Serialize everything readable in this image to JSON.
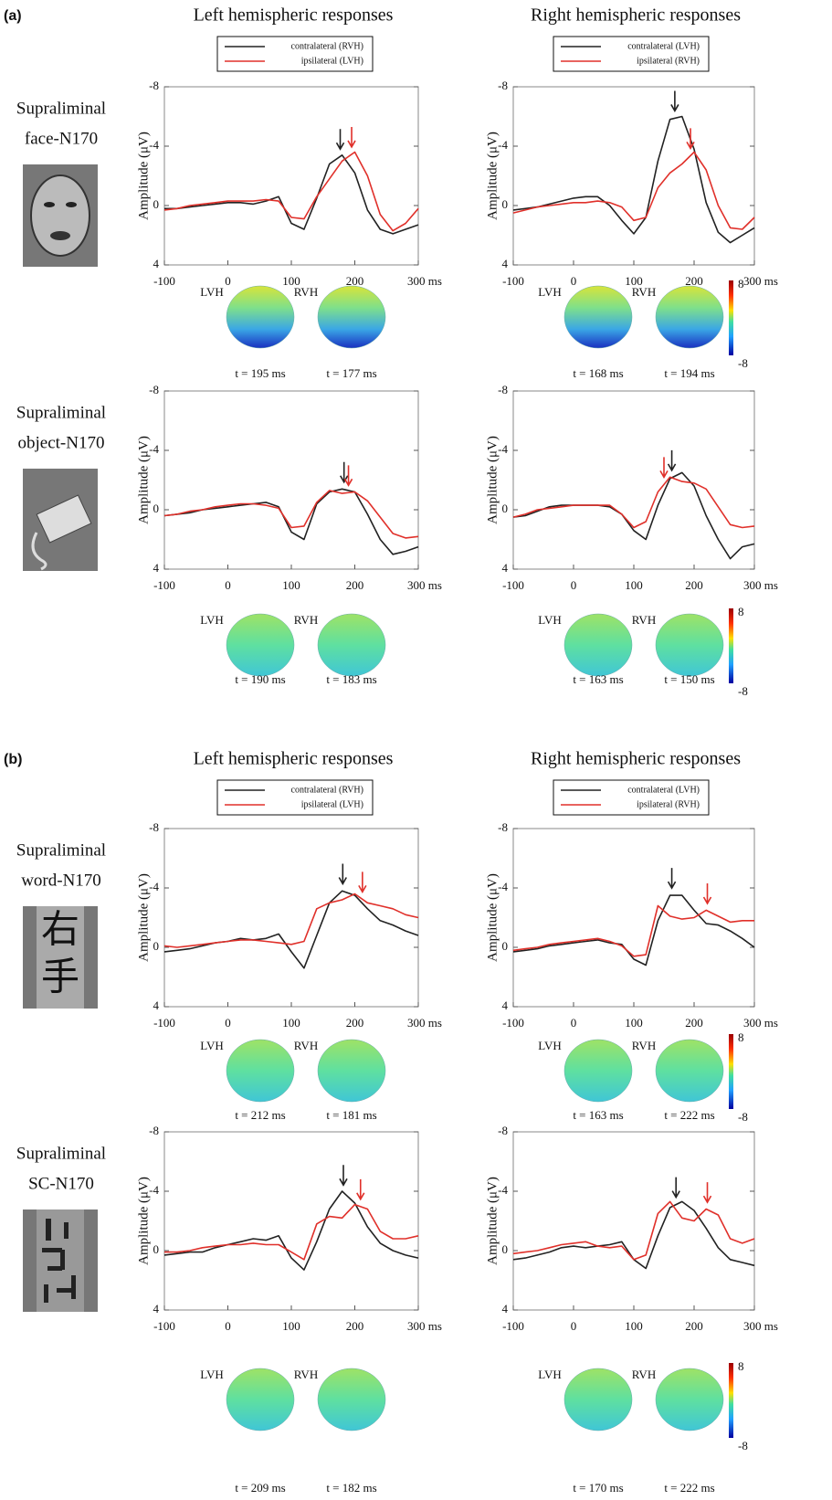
{
  "panels": [
    {
      "label": "(a)",
      "columns": [
        {
          "title": "Left hemispheric responses",
          "legend": [
            "contralateral (RVH)",
            "ipsilateral (LVH)"
          ]
        },
        {
          "title": "Right hemispheric responses",
          "legend": [
            "contralateral (LVH)",
            "ipsilateral (RVH)"
          ]
        }
      ],
      "rows": [
        {
          "label": [
            "Supraliminal",
            "face-N170"
          ]
        },
        {
          "label": [
            "Supraliminal",
            "object-N170"
          ]
        }
      ]
    },
    {
      "label": "(b)",
      "columns": [
        {
          "title": "Left hemispheric responses",
          "legend": [
            "contralateral (RVH)",
            "ipsilateral (LVH)"
          ]
        },
        {
          "title": "Right hemispheric responses",
          "legend": [
            "contralateral (LVH)",
            "ipsilateral (RVH)"
          ]
        }
      ],
      "rows": [
        {
          "label": [
            "Supraliminal",
            "word-N170"
          ],
          "stimulus_text": [
            "右",
            "手"
          ]
        },
        {
          "label": [
            "Supraliminal",
            "SC-N170"
          ]
        }
      ]
    }
  ],
  "chart_data": [
    {
      "type": "line",
      "ylabel": "Amplitude (μV)",
      "x": [
        -100,
        -80,
        -60,
        -40,
        -20,
        0,
        20,
        40,
        60,
        80,
        100,
        120,
        140,
        160,
        180,
        200,
        220,
        240,
        260,
        280,
        300
      ],
      "series": [
        {
          "color": "#222222",
          "peak": 177,
          "values": [
            0.2,
            0.2,
            0.1,
            0,
            -0.1,
            -0.2,
            -0.2,
            -0.1,
            -0.3,
            -0.6,
            1.2,
            1.6,
            -0.5,
            -2.8,
            -3.4,
            -2.2,
            0.3,
            1.6,
            1.9,
            1.6,
            1.3
          ]
        },
        {
          "color": "#e0302a",
          "peak": 195,
          "values": [
            0.3,
            0.2,
            0,
            -0.1,
            -0.2,
            -0.3,
            -0.3,
            -0.3,
            -0.4,
            -0.3,
            0.8,
            0.9,
            -0.6,
            -1.8,
            -3.0,
            -3.6,
            -2.0,
            0.6,
            1.7,
            1.2,
            0.2
          ]
        }
      ],
      "xlim": [
        -100,
        300
      ],
      "ylim": [
        4,
        -8
      ],
      "yticks": [
        -8,
        -4,
        0,
        4
      ],
      "xticks": [
        -100,
        0,
        100,
        200,
        {
          "value": 300,
          "label": "300 ms"
        }
      ],
      "topomaps": [
        {
          "label": "LVH",
          "time": "t = 195 ms"
        },
        {
          "label": "RVH",
          "time": "t = 177 ms"
        }
      ]
    },
    {
      "type": "line",
      "ylabel": "Amplitude (μV)",
      "x": [
        -100,
        -80,
        -60,
        -40,
        -20,
        0,
        20,
        40,
        60,
        80,
        100,
        120,
        140,
        160,
        180,
        200,
        220,
        240,
        260,
        280,
        300
      ],
      "series": [
        {
          "color": "#222222",
          "peak": 168,
          "values": [
            0.3,
            0.2,
            0.1,
            -0.1,
            -0.3,
            -0.5,
            -0.6,
            -0.6,
            0,
            1.0,
            1.9,
            0.8,
            -3.0,
            -5.8,
            -6.0,
            -3.8,
            -0.2,
            1.8,
            2.5,
            2.0,
            1.5
          ]
        },
        {
          "color": "#e0302a",
          "peak": 194,
          "values": [
            0.5,
            0.3,
            0.1,
            0,
            -0.1,
            -0.2,
            -0.2,
            -0.3,
            -0.2,
            0.1,
            1.0,
            0.8,
            -1.2,
            -2.2,
            -2.8,
            -3.6,
            -2.4,
            0,
            1.5,
            1.6,
            0.8
          ]
        }
      ],
      "xlim": [
        -100,
        300
      ],
      "ylim": [
        4,
        -8
      ],
      "yticks": [
        -8,
        -4,
        0,
        4
      ],
      "xticks": [
        -100,
        0,
        100,
        200,
        {
          "value": 300,
          "label": "300 ms"
        }
      ],
      "topomaps": [
        {
          "label": "LVH",
          "time": "t = 168 ms"
        },
        {
          "label": "RVH",
          "time": "t = 194 ms"
        }
      ],
      "colorbar": [
        8,
        -8
      ]
    },
    {
      "type": "line",
      "ylabel": "Amplitude (μV)",
      "x": [
        -100,
        -80,
        -60,
        -40,
        -20,
        0,
        20,
        40,
        60,
        80,
        100,
        120,
        140,
        160,
        180,
        200,
        220,
        240,
        260,
        280,
        300
      ],
      "series": [
        {
          "color": "#222222",
          "peak": 183,
          "values": [
            0.4,
            0.3,
            0.2,
            0,
            -0.1,
            -0.2,
            -0.3,
            -0.4,
            -0.5,
            -0.2,
            1.5,
            2.0,
            -0.4,
            -1.2,
            -1.4,
            -1.2,
            0.3,
            2.0,
            3.0,
            2.8,
            2.5
          ]
        },
        {
          "color": "#e0302a",
          "peak": 190,
          "values": [
            0.4,
            0.3,
            0.1,
            0,
            -0.2,
            -0.3,
            -0.4,
            -0.4,
            -0.3,
            -0.1,
            1.2,
            1.1,
            -0.5,
            -1.3,
            -1.1,
            -1.2,
            -0.6,
            0.5,
            1.6,
            1.9,
            1.8
          ]
        }
      ],
      "xlim": [
        -100,
        300
      ],
      "ylim": [
        4,
        -8
      ],
      "yticks": [
        -8,
        -4,
        0,
        4
      ],
      "xticks": [
        -100,
        0,
        100,
        200,
        {
          "value": 300,
          "label": "300 ms"
        }
      ],
      "topomaps": [
        {
          "label": "LVH",
          "time": "t = 190 ms"
        },
        {
          "label": "RVH",
          "time": "t = 183 ms"
        }
      ]
    },
    {
      "type": "line",
      "ylabel": "Amplitude (μV)",
      "x": [
        -100,
        -80,
        -60,
        -40,
        -20,
        0,
        20,
        40,
        60,
        80,
        100,
        120,
        140,
        160,
        180,
        200,
        220,
        240,
        260,
        280,
        300
      ],
      "series": [
        {
          "color": "#222222",
          "peak": 163,
          "values": [
            0.5,
            0.4,
            0.1,
            -0.2,
            -0.3,
            -0.3,
            -0.3,
            -0.3,
            -0.2,
            0.3,
            1.4,
            2.0,
            -0.3,
            -2.1,
            -2.5,
            -1.6,
            0.4,
            2.0,
            3.3,
            2.5,
            2.3
          ]
        },
        {
          "color": "#e0302a",
          "peak": 150,
          "values": [
            0.5,
            0.3,
            0,
            -0.1,
            -0.2,
            -0.3,
            -0.3,
            -0.3,
            -0.3,
            0.3,
            1.2,
            0.8,
            -1.2,
            -2.2,
            -1.9,
            -1.8,
            -1.4,
            -0.2,
            1.0,
            1.2,
            1.1
          ]
        }
      ],
      "xlim": [
        -100,
        300
      ],
      "ylim": [
        4,
        -8
      ],
      "yticks": [
        -8,
        -4,
        0,
        4
      ],
      "xticks": [
        -100,
        0,
        100,
        200,
        {
          "value": 300,
          "label": "300 ms"
        }
      ],
      "topomaps": [
        {
          "label": "LVH",
          "time": "t = 163 ms"
        },
        {
          "label": "RVH",
          "time": "t = 150 ms"
        }
      ],
      "colorbar": [
        8,
        -8
      ]
    },
    {
      "type": "line",
      "ylabel": "Amplitude (μV)",
      "x": [
        -100,
        -80,
        -60,
        -40,
        -20,
        0,
        20,
        40,
        60,
        80,
        100,
        120,
        140,
        160,
        180,
        200,
        220,
        240,
        260,
        280,
        300
      ],
      "series": [
        {
          "color": "#222222",
          "peak": 181,
          "values": [
            0.3,
            0.2,
            0.1,
            -0.1,
            -0.3,
            -0.4,
            -0.6,
            -0.5,
            -0.6,
            -0.9,
            0.3,
            1.4,
            -0.8,
            -3.0,
            -3.8,
            -3.5,
            -2.6,
            -1.8,
            -1.5,
            -1.1,
            -0.8
          ]
        },
        {
          "color": "#e0302a",
          "peak": 212,
          "values": [
            -0.1,
            0,
            -0.1,
            -0.2,
            -0.3,
            -0.4,
            -0.5,
            -0.5,
            -0.4,
            -0.3,
            -0.2,
            -0.4,
            -2.6,
            -3.0,
            -3.2,
            -3.6,
            -3.0,
            -2.8,
            -2.6,
            -2.2,
            -2.0
          ]
        }
      ],
      "xlim": [
        -100,
        300
      ],
      "ylim": [
        4,
        -8
      ],
      "yticks": [
        -8,
        -4,
        0,
        4
      ],
      "xticks": [
        -100,
        0,
        100,
        200,
        {
          "value": 300,
          "label": "300 ms"
        }
      ],
      "topomaps": [
        {
          "label": "LVH",
          "time": "t = 212 ms"
        },
        {
          "label": "RVH",
          "time": "t = 181 ms"
        }
      ]
    },
    {
      "type": "line",
      "ylabel": "Amplitude (μV)",
      "x": [
        -100,
        -80,
        -60,
        -40,
        -20,
        0,
        20,
        40,
        60,
        80,
        100,
        120,
        140,
        160,
        180,
        200,
        220,
        240,
        260,
        280,
        300
      ],
      "series": [
        {
          "color": "#222222",
          "peak": 163,
          "values": [
            0.3,
            0.2,
            0.1,
            -0.1,
            -0.2,
            -0.3,
            -0.4,
            -0.5,
            -0.3,
            -0.2,
            0.8,
            1.2,
            -1.8,
            -3.5,
            -3.5,
            -2.5,
            -1.6,
            -1.5,
            -1.1,
            -0.6,
            0
          ]
        },
        {
          "color": "#e0302a",
          "peak": 222,
          "values": [
            0.2,
            0.1,
            0,
            -0.2,
            -0.3,
            -0.4,
            -0.5,
            -0.6,
            -0.4,
            -0.1,
            0.6,
            0.5,
            -2.8,
            -2.1,
            -1.9,
            -2.0,
            -2.5,
            -2.1,
            -1.7,
            -1.8,
            -1.8
          ]
        }
      ],
      "xlim": [
        -100,
        300
      ],
      "ylim": [
        4,
        -8
      ],
      "yticks": [
        -8,
        -4,
        0,
        4
      ],
      "xticks": [
        -100,
        0,
        100,
        200,
        {
          "value": 300,
          "label": "300 ms"
        }
      ],
      "topomaps": [
        {
          "label": "LVH",
          "time": "t = 163 ms"
        },
        {
          "label": "RVH",
          "time": "t = 222 ms"
        }
      ],
      "colorbar": [
        8,
        -8
      ]
    },
    {
      "type": "line",
      "ylabel": "Amplitude (μV)",
      "x": [
        -100,
        -80,
        -60,
        -40,
        -20,
        0,
        20,
        40,
        60,
        80,
        100,
        120,
        140,
        160,
        180,
        200,
        220,
        240,
        260,
        280,
        300
      ],
      "series": [
        {
          "color": "#222222",
          "peak": 182,
          "values": [
            0.3,
            0.2,
            0.1,
            0.1,
            -0.2,
            -0.4,
            -0.6,
            -0.8,
            -0.7,
            -1.0,
            0.5,
            1.3,
            -0.6,
            -2.8,
            -4.0,
            -3.2,
            -1.6,
            -0.5,
            0,
            0.3,
            0.5
          ]
        },
        {
          "color": "#e0302a",
          "peak": 209,
          "values": [
            0.1,
            0.1,
            0,
            -0.2,
            -0.3,
            -0.4,
            -0.4,
            -0.5,
            -0.4,
            -0.4,
            0.1,
            0.6,
            -1.8,
            -2.3,
            -2.2,
            -3.1,
            -2.8,
            -1.3,
            -0.8,
            -0.8,
            -1.0
          ]
        }
      ],
      "xlim": [
        -100,
        300
      ],
      "ylim": [
        4,
        -8
      ],
      "yticks": [
        -8,
        -4,
        0,
        4
      ],
      "xticks": [
        -100,
        0,
        100,
        200,
        {
          "value": 300,
          "label": "300 ms"
        }
      ],
      "topomaps": [
        {
          "label": "LVH",
          "time": "t = 209 ms"
        },
        {
          "label": "RVH",
          "time": "t = 182 ms"
        }
      ]
    },
    {
      "type": "line",
      "ylabel": "Amplitude (μV)",
      "x": [
        -100,
        -80,
        -60,
        -40,
        -20,
        0,
        20,
        40,
        60,
        80,
        100,
        120,
        140,
        160,
        180,
        200,
        220,
        240,
        260,
        280,
        300
      ],
      "series": [
        {
          "color": "#222222",
          "peak": 170,
          "values": [
            0.6,
            0.5,
            0.3,
            0.1,
            -0.2,
            -0.3,
            -0.2,
            -0.3,
            -0.4,
            -0.6,
            0.6,
            1.2,
            -1.0,
            -2.9,
            -3.3,
            -2.7,
            -1.5,
            -0.2,
            0.6,
            0.8,
            1.0
          ]
        },
        {
          "color": "#e0302a",
          "peak": 222,
          "values": [
            0.2,
            0.1,
            0,
            -0.2,
            -0.4,
            -0.5,
            -0.6,
            -0.3,
            -0.2,
            -0.3,
            0.6,
            0.3,
            -2.5,
            -3.3,
            -2.2,
            -2.0,
            -2.8,
            -2.4,
            -0.8,
            -0.5,
            -0.8
          ]
        }
      ],
      "xlim": [
        -100,
        300
      ],
      "ylim": [
        4,
        -8
      ],
      "yticks": [
        -8,
        -4,
        0,
        4
      ],
      "xticks": [
        -100,
        0,
        100,
        200,
        {
          "value": 300,
          "label": "300 ms"
        }
      ],
      "topomaps": [
        {
          "label": "LVH",
          "time": "t = 170 ms"
        },
        {
          "label": "RVH",
          "time": "t = 222 ms"
        }
      ],
      "colorbar": [
        8,
        -8
      ]
    }
  ]
}
